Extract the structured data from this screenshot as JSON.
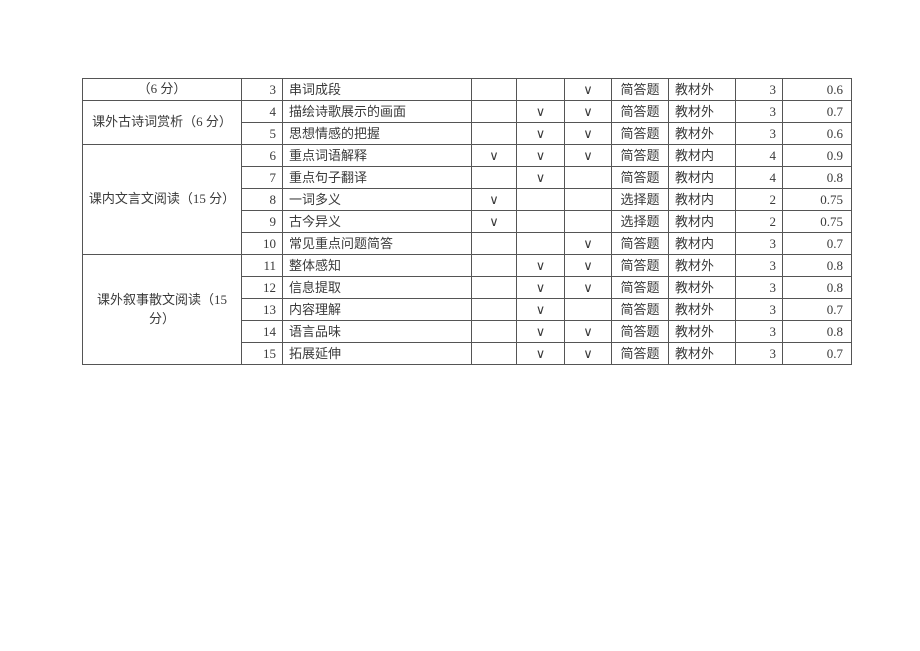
{
  "check": "∨",
  "sections": [
    {
      "label": "（6 分）",
      "rowspan": 1
    },
    {
      "label": "课外古诗词赏析（6 分）",
      "rowspan": 2
    },
    {
      "label": "课内文言文阅读（15 分）",
      "rowspan": 5
    },
    {
      "label": "课外叙事散文阅读（15 分）",
      "rowspan": 5
    }
  ],
  "rows": [
    {
      "n": "3",
      "topic": "串词成段",
      "m1": "",
      "m2": "",
      "m3": "v",
      "type": "简答题",
      "src": "教材外",
      "pt": "3",
      "diff": "0.6"
    },
    {
      "n": "4",
      "topic": "描绘诗歌展示的画面",
      "m1": "",
      "m2": "v",
      "m3": "v",
      "type": "简答题",
      "src": "教材外",
      "pt": "3",
      "diff": "0.7"
    },
    {
      "n": "5",
      "topic": "思想情感的把握",
      "m1": "",
      "m2": "v",
      "m3": "v",
      "type": "简答题",
      "src": "教材外",
      "pt": "3",
      "diff": "0.6"
    },
    {
      "n": "6",
      "topic": "重点词语解释",
      "m1": "v",
      "m2": "v",
      "m3": "v",
      "type": "简答题",
      "src": "教材内",
      "pt": "4",
      "diff": "0.9"
    },
    {
      "n": "7",
      "topic": "重点句子翻译",
      "m1": "",
      "m2": "v",
      "m3": "",
      "type": "简答题",
      "src": "教材内",
      "pt": "4",
      "diff": "0.8"
    },
    {
      "n": "8",
      "topic": "一词多义",
      "m1": "v",
      "m2": "",
      "m3": "",
      "type": "选择题",
      "src": "教材内",
      "pt": "2",
      "diff": "0.75"
    },
    {
      "n": "9",
      "topic": "古今异义",
      "m1": "v",
      "m2": "",
      "m3": "",
      "type": "选择题",
      "src": "教材内",
      "pt": "2",
      "diff": "0.75"
    },
    {
      "n": "10",
      "topic": "常见重点问题简答",
      "m1": "",
      "m2": "",
      "m3": "v",
      "type": "简答题",
      "src": "教材内",
      "pt": "3",
      "diff": "0.7"
    },
    {
      "n": "11",
      "topic": "整体感知",
      "m1": "",
      "m2": "v",
      "m3": "v",
      "type": "简答题",
      "src": "教材外",
      "pt": "3",
      "diff": "0.8"
    },
    {
      "n": "12",
      "topic": "信息提取",
      "m1": "",
      "m2": "v",
      "m3": "v",
      "type": "简答题",
      "src": "教材外",
      "pt": "3",
      "diff": "0.8"
    },
    {
      "n": "13",
      "topic": "内容理解",
      "m1": "",
      "m2": "v",
      "m3": "",
      "type": "简答题",
      "src": "教材外",
      "pt": "3",
      "diff": "0.7"
    },
    {
      "n": "14",
      "topic": "语言品味",
      "m1": "",
      "m2": "v",
      "m3": "v",
      "type": "简答题",
      "src": "教材外",
      "pt": "3",
      "diff": "0.8"
    },
    {
      "n": "15",
      "topic": "拓展延伸",
      "m1": "",
      "m2": "v",
      "m3": "v",
      "type": "简答题",
      "src": "教材外",
      "pt": "3",
      "diff": "0.7"
    }
  ]
}
